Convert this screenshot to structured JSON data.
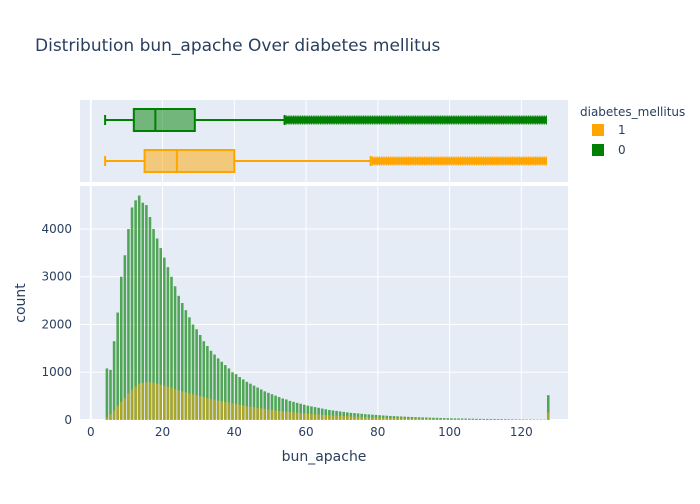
{
  "chart_data": {
    "title": "Distribution bun_apache Over diabetes mellitus",
    "xlabel": "bun_apache",
    "ylabel": "count",
    "legend": {
      "title": "diabetes_mellitus",
      "placement": "top-right",
      "entries": [
        {
          "label": "1",
          "color": "#FFA500"
        },
        {
          "label": "0",
          "color": "#008000"
        }
      ]
    },
    "x_ticks": [
      "0",
      "20",
      "40",
      "60",
      "80",
      "100",
      "120"
    ],
    "y_ticks": [
      "0",
      "1000",
      "2000",
      "3000",
      "4000"
    ],
    "xlim": [
      -3,
      133
    ],
    "ylim": [
      0,
      4900
    ],
    "grid": true,
    "box": {
      "type": "box",
      "series": [
        {
          "name": "0",
          "color": "#008000",
          "min": 4,
          "q1": 12,
          "median": 18,
          "q3": 29,
          "upper_fence": 54,
          "outliers_from": 54,
          "outliers_to": 127
        },
        {
          "name": "1",
          "color": "#FFA500",
          "min": 4,
          "q1": 15,
          "median": 24,
          "q3": 40,
          "upper_fence": 78,
          "outliers_from": 78,
          "outliers_to": 127
        }
      ]
    },
    "histogram": {
      "type": "bar",
      "mode": "overlay",
      "bin_width": 1,
      "x_start": 4,
      "series": [
        {
          "name": "0",
          "color": "#008000",
          "values": [
            1080,
            1050,
            1650,
            2250,
            3000,
            3450,
            4000,
            4450,
            4600,
            4700,
            4550,
            4500,
            4250,
            4000,
            3800,
            3600,
            3400,
            3200,
            3000,
            2800,
            2600,
            2450,
            2300,
            2150,
            2000,
            1900,
            1780,
            1650,
            1550,
            1450,
            1370,
            1290,
            1220,
            1150,
            1080,
            1000,
            960,
            900,
            850,
            800,
            760,
            720,
            680,
            640,
            600,
            570,
            540,
            510,
            480,
            450,
            430,
            400,
            380,
            360,
            340,
            320,
            300,
            285,
            270,
            255,
            240,
            225,
            210,
            200,
            190,
            180,
            170,
            160,
            150,
            145,
            138,
            130,
            123,
            117,
            111,
            105,
            100,
            95,
            90,
            85,
            81,
            77,
            73,
            70,
            66,
            63,
            60,
            57,
            54,
            52,
            49,
            47,
            45,
            42,
            40,
            38,
            36,
            34,
            33,
            31,
            30,
            28,
            27,
            25,
            24,
            23,
            22,
            21,
            20,
            19,
            18,
            17,
            16,
            15,
            14,
            13,
            12,
            11,
            11,
            10,
            9,
            9,
            8,
            520
          ]
        },
        {
          "name": "1",
          "color": "#FFA500",
          "values": [
            60,
            120,
            200,
            300,
            380,
            460,
            560,
            640,
            700,
            760,
            780,
            790,
            790,
            780,
            760,
            740,
            720,
            700,
            680,
            650,
            620,
            600,
            580,
            560,
            540,
            520,
            500,
            480,
            460,
            440,
            425,
            410,
            395,
            380,
            365,
            350,
            335,
            320,
            305,
            290,
            278,
            266,
            255,
            244,
            233,
            222,
            212,
            202,
            192,
            183,
            175,
            167,
            160,
            153,
            146,
            139,
            133,
            127,
            121,
            115,
            110,
            105,
            100,
            95,
            91,
            87,
            83,
            79,
            75,
            72,
            68,
            65,
            62,
            59,
            56,
            53,
            51,
            48,
            46,
            44,
            42,
            40,
            38,
            36,
            34,
            33,
            31,
            30,
            28,
            27,
            26,
            24,
            23,
            22,
            21,
            20,
            19,
            18,
            17,
            16,
            15,
            14,
            14,
            13,
            12,
            12,
            11,
            11,
            10,
            10,
            9,
            9,
            8,
            8,
            7,
            7,
            7,
            6,
            6,
            6,
            5,
            5,
            5,
            160
          ]
        }
      ]
    }
  }
}
